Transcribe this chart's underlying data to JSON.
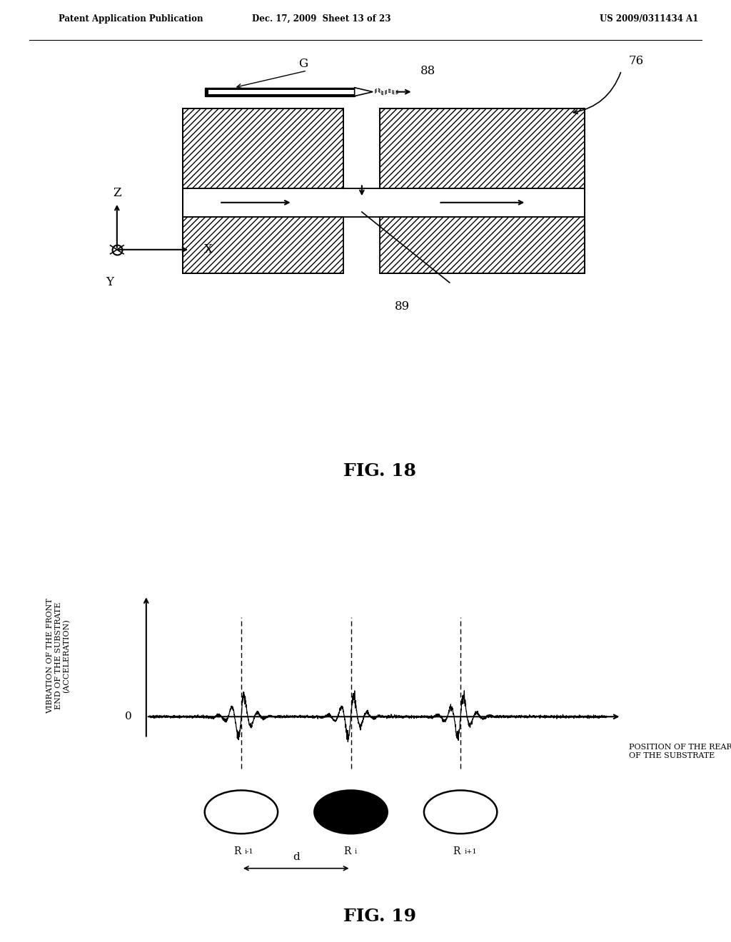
{
  "bg_color": "#ffffff",
  "header_left": "Patent Application Publication",
  "header_mid": "Dec. 17, 2009  Sheet 13 of 23",
  "header_right": "US 2009/0311434 A1",
  "fig18_title": "FIG. 18",
  "fig19_title": "FIG. 19",
  "label_G": "G",
  "label_88": "88",
  "label_76": "76",
  "label_89": "89",
  "label_Z": "Z",
  "label_X": "X",
  "label_Y": "Y",
  "label_0": "0",
  "fig19_ylabel_line1": "VIBRATION OF THE FRONT",
  "fig19_ylabel_line2": "END OF THE SUBSTRATE",
  "fig19_ylabel_line3": "(ACCELERATION)",
  "fig19_xlabel_line1": "POSITION OF THE REAR END",
  "fig19_xlabel_line2": "OF THE SUBSTRATE",
  "label_d": "d",
  "label_Ri_m1": "R",
  "label_Ri": "R",
  "label_Ri_p1": "R",
  "sub_im1": "i-1",
  "sub_i": "i",
  "sub_ip1": "i+1"
}
